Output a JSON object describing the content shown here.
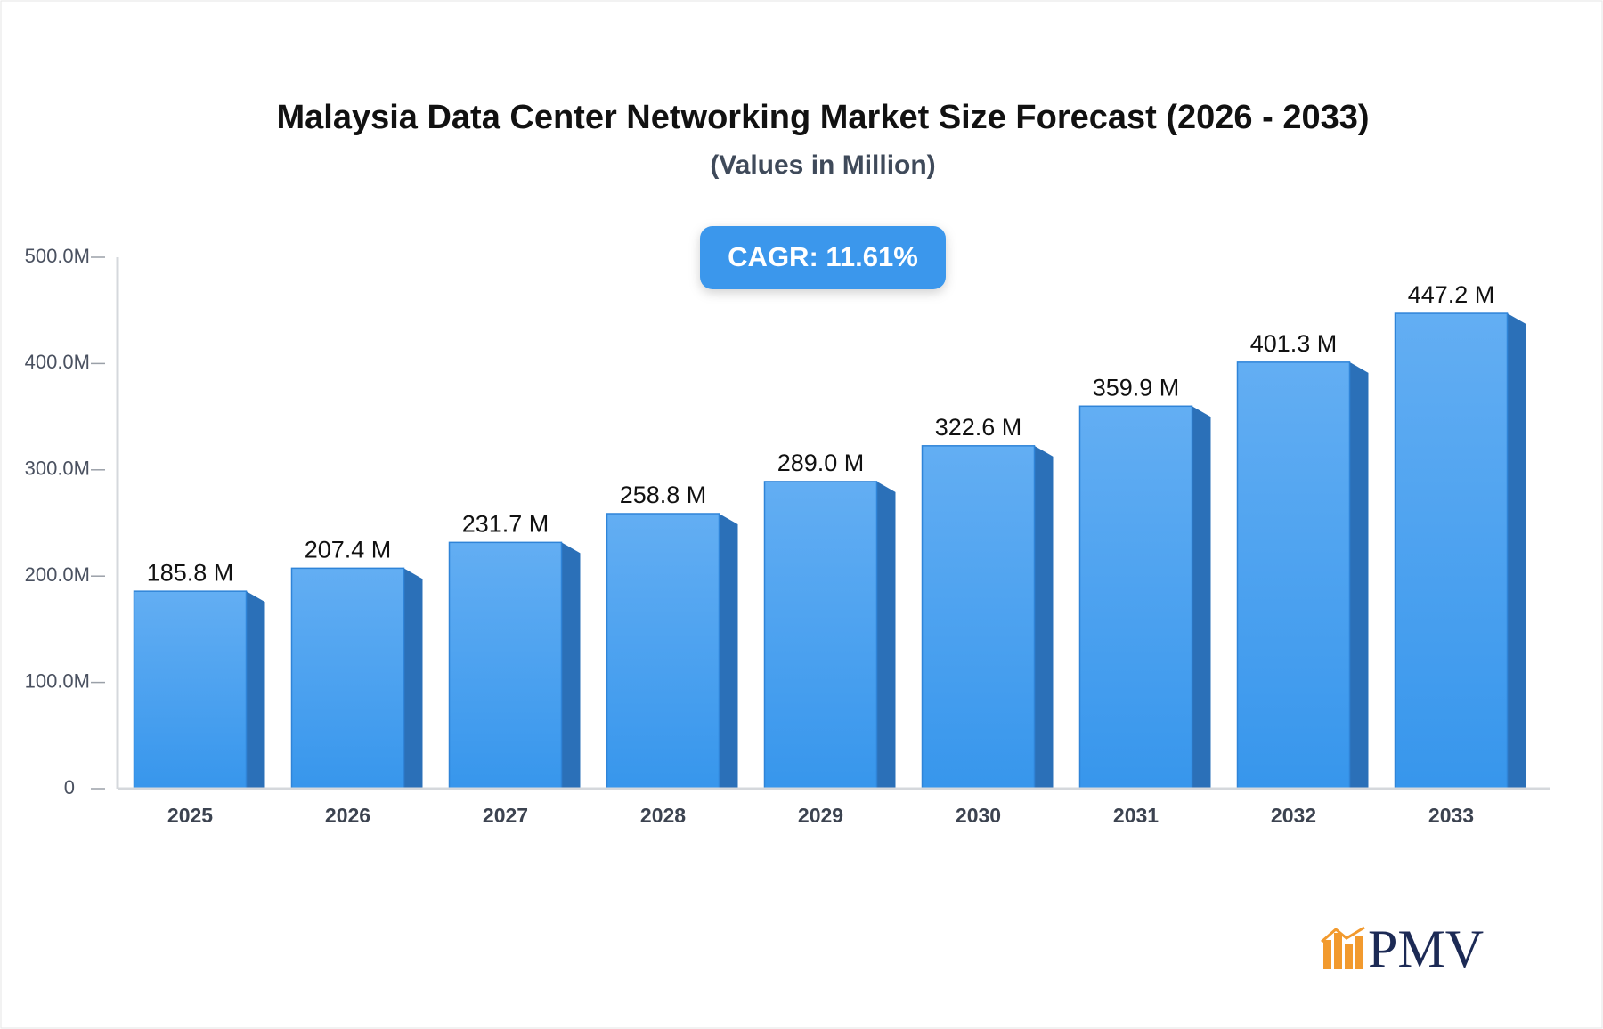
{
  "chart_data": {
    "type": "bar3d",
    "title": "Malaysia Data Center Networking Market Size Forecast (2026 - 2033)",
    "subtitle": "(Values in Million)",
    "badge": "CAGR: 11.61%",
    "categories": [
      "2025",
      "2026",
      "2027",
      "2028",
      "2029",
      "2030",
      "2031",
      "2032",
      "2033"
    ],
    "values": [
      185.8,
      207.4,
      231.7,
      258.8,
      289.0,
      322.6,
      359.9,
      401.3,
      447.2
    ],
    "value_labels": [
      "185.8 M",
      "207.4 M",
      "231.7 M",
      "258.8 M",
      "289.0 M",
      "322.6 M",
      "359.9 M",
      "401.3 M",
      "447.2 M"
    ],
    "color": "#4aa2f0",
    "ylim": [
      0,
      500
    ],
    "yticks": [
      0,
      {
        "value": 100,
        "label": "100.0M"
      },
      {
        "value": 200,
        "label": "200.0M"
      },
      {
        "value": 300,
        "label": "300.0M"
      },
      {
        "value": 400,
        "label": "400.0M"
      },
      {
        "value": 500,
        "label": "500.0M"
      }
    ],
    "logo": "PMV"
  }
}
